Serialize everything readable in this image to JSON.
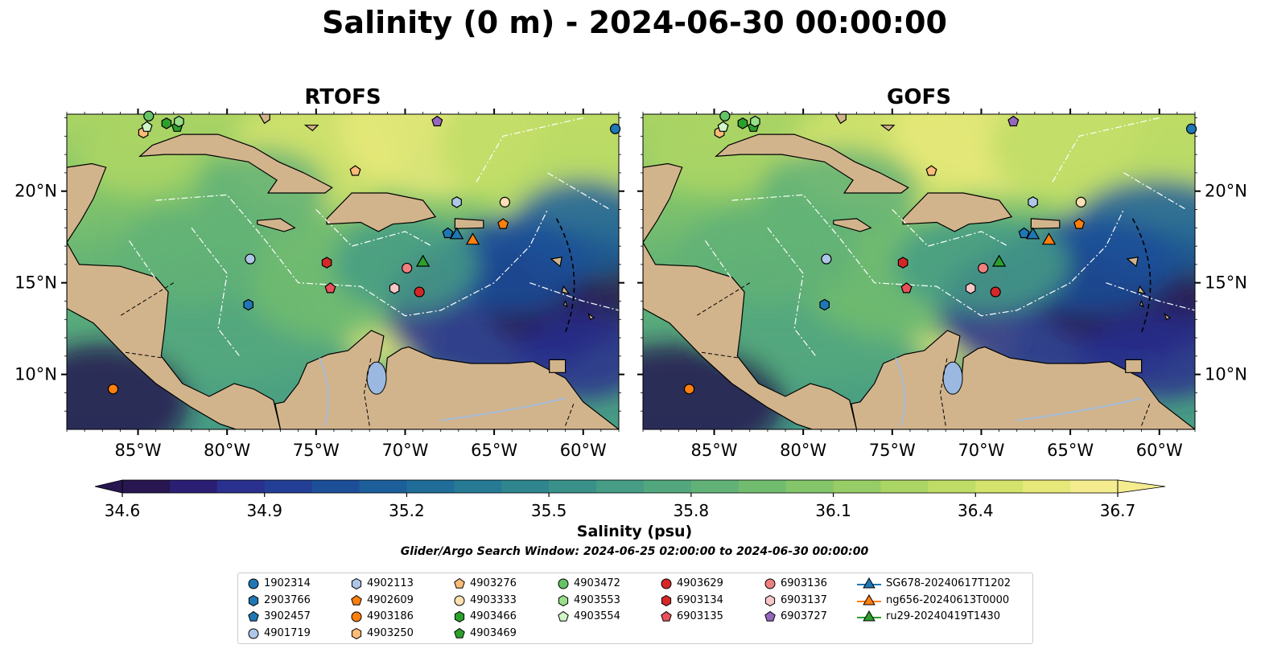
{
  "title": "Salinity (0 m) - 2024-06-30 00:00:00",
  "panels": [
    {
      "title": "RTOFS"
    },
    {
      "title": "GOFS"
    }
  ],
  "colorbar": {
    "label": "Salinity (psu)",
    "vmin": 34.6,
    "vmax": 36.7,
    "ticks": [
      "34.6",
      "34.9",
      "35.2",
      "35.5",
      "35.8",
      "36.1",
      "36.4",
      "36.7"
    ],
    "colors": [
      "#27164f",
      "#2a1f74",
      "#29308d",
      "#233f95",
      "#1d4f99",
      "#1c5f9a",
      "#1f6d98",
      "#267a94",
      "#2f868f",
      "#3a918a",
      "#469c85",
      "#53a77e",
      "#62b277",
      "#72bc70",
      "#84c56a",
      "#97cd66",
      "#abd564",
      "#bfdd66",
      "#d3e36c",
      "#e6e979",
      "#f4ec8f"
    ]
  },
  "axes": {
    "lon_ticks": [
      "85°W",
      "80°W",
      "75°W",
      "70°W",
      "65°W",
      "60°W"
    ],
    "lat_ticks": [
      "20°N",
      "15°N",
      "10°N"
    ],
    "lon_range": [
      -89,
      -58
    ],
    "lat_range": [
      7,
      24.2
    ]
  },
  "search_window": "Glider/Argo Search Window: 2024-06-25 02:00:00 to 2024-06-30 00:00:00",
  "chart_data": {
    "type": "heatmap",
    "variable": "Salinity",
    "units": "psu",
    "depth_m": 0,
    "floats": [
      {
        "id": "1902314",
        "shape": "circle",
        "color": "#1f77b4",
        "lon": -58.2,
        "lat": 23.4
      },
      {
        "id": "2903766",
        "shape": "hexagon",
        "color": "#1f77b4",
        "lon": -78.8,
        "lat": 13.8
      },
      {
        "id": "3902457",
        "shape": "pentagon",
        "color": "#1f77b4",
        "lon": -67.6,
        "lat": 17.7
      },
      {
        "id": "4901719",
        "shape": "circle",
        "color": "#aec7e8",
        "lon": -78.7,
        "lat": 16.3
      },
      {
        "id": "4902113",
        "shape": "hexagon",
        "color": "#aec7e8",
        "lon": -67.1,
        "lat": 19.4
      },
      {
        "id": "4902609",
        "shape": "pentagon",
        "color": "#ff7f0e",
        "lon": -64.5,
        "lat": 18.2
      },
      {
        "id": "4903186",
        "shape": "circle",
        "color": "#ff7f0e",
        "lon": -86.4,
        "lat": 9.2
      },
      {
        "id": "4903250",
        "shape": "hexagon",
        "color": "#ffbb78",
        "lon": -84.7,
        "lat": 23.2
      },
      {
        "id": "4903276",
        "shape": "pentagon",
        "color": "#ffbb78",
        "lon": -72.8,
        "lat": 21.1
      },
      {
        "id": "4903333",
        "shape": "circle",
        "color": "#ffe0b3",
        "lon": -64.4,
        "lat": 19.4
      },
      {
        "id": "4903466",
        "shape": "hexagon",
        "color": "#2ca02c",
        "lon": -83.4,
        "lat": 23.7
      },
      {
        "id": "4903469",
        "shape": "pentagon",
        "color": "#2ca02c",
        "lon": -82.8,
        "lat": 23.5
      },
      {
        "id": "4903472",
        "shape": "circle",
        "color": "#66c266",
        "lon": -84.4,
        "lat": 24.1
      },
      {
        "id": "4903553",
        "shape": "hexagon",
        "color": "#98df8a",
        "lon": -82.7,
        "lat": 23.8
      },
      {
        "id": "4903554",
        "shape": "pentagon",
        "color": "#d0f5c8",
        "lon": -84.5,
        "lat": 23.5
      },
      {
        "id": "4903629",
        "shape": "circle",
        "color": "#d62728",
        "lon": -69.2,
        "lat": 14.5
      },
      {
        "id": "6903134",
        "shape": "hexagon",
        "color": "#d62728",
        "lon": -74.4,
        "lat": 16.1
      },
      {
        "id": "6903135",
        "shape": "pentagon",
        "color": "#e8505a",
        "lon": -74.2,
        "lat": 14.7
      },
      {
        "id": "6903136",
        "shape": "circle",
        "color": "#f08080",
        "lon": -69.9,
        "lat": 15.8
      },
      {
        "id": "6903137",
        "shape": "hexagon",
        "color": "#f7c6c7",
        "lon": -70.6,
        "lat": 14.7
      },
      {
        "id": "6903727",
        "shape": "pentagon",
        "color": "#9467bd",
        "lon": -68.2,
        "lat": 23.8
      }
    ],
    "gliders": [
      {
        "id": "SG678-20240617T1202",
        "color": "#1f77b4",
        "lon": -67.1,
        "lat": 17.6
      },
      {
        "id": "ng656-20240613T0000",
        "color": "#ff7f0e",
        "lon": -66.2,
        "lat": 17.3
      },
      {
        "id": "ru29-20240419T1430",
        "color": "#2ca02c",
        "lon": -69.0,
        "lat": 16.1
      }
    ]
  }
}
